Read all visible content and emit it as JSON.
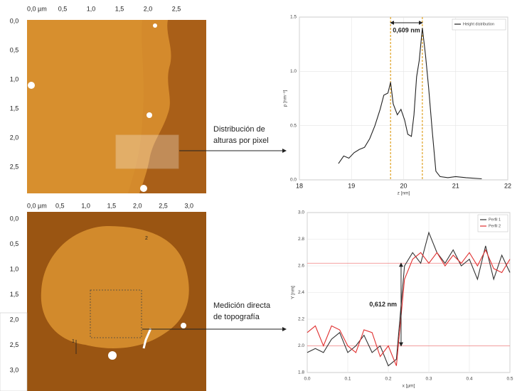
{
  "images": [
    {
      "x_labels": [
        "0,0 µm",
        "0,5",
        "1,0",
        "1,5",
        "2,0",
        "2,5"
      ],
      "y_labels": [
        "0,0",
        "0,5",
        "1,0",
        "1,5",
        "2,0",
        "2,5"
      ]
    },
    {
      "x_labels": [
        "0,0 µm",
        "0,5",
        "1,0",
        "1,5",
        "2,0",
        "2,5",
        "3,0"
      ],
      "y_labels": [
        "0,0",
        "0,5",
        "1,0",
        "1,5",
        "2,0",
        "2,5",
        "3,0"
      ],
      "markers": [
        "1",
        "2"
      ]
    }
  ],
  "captions": [
    [
      "Distribución de",
      "alturas por pixel"
    ],
    [
      "Medición directa",
      "de topografía"
    ]
  ],
  "chart_data": [
    {
      "type": "line",
      "xlabel": "z [nm]",
      "ylabel": "ρ [nm⁻¹]",
      "xlim": [
        18,
        22
      ],
      "xticks": [
        18,
        19,
        20,
        21,
        22
      ],
      "ylim": [
        0,
        1.5
      ],
      "yticks": [
        {
          "value": 0,
          "label": "0.0"
        },
        0.5,
        {
          "value": 1,
          "label": "1.0"
        },
        1.5
      ],
      "grid": true,
      "legend": "upper right",
      "x": [
        18.75,
        18.85,
        18.95,
        19.05,
        19.15,
        19.25,
        19.35,
        19.45,
        19.55,
        19.62,
        19.7,
        19.75,
        19.8,
        19.88,
        19.95,
        20.02,
        20.08,
        20.15,
        20.2,
        20.25,
        20.3,
        20.36,
        20.42,
        20.48,
        20.55,
        20.62,
        20.7,
        20.85,
        21.0,
        21.2,
        21.5
      ],
      "series": [
        {
          "name": "Height distribution",
          "color": "#222222",
          "values": [
            0.15,
            0.22,
            0.2,
            0.25,
            0.28,
            0.3,
            0.38,
            0.5,
            0.65,
            0.78,
            0.8,
            0.9,
            0.7,
            0.6,
            0.65,
            0.55,
            0.42,
            0.4,
            0.6,
            0.95,
            1.1,
            1.4,
            1.15,
            0.85,
            0.45,
            0.08,
            0.03,
            0.02,
            0.03,
            0.02,
            0.01
          ]
        }
      ],
      "vlines": [
        19.75,
        20.36
      ],
      "ref_color": "#e0a020",
      "annotation": "0,609 nm"
    },
    {
      "type": "line",
      "xlabel": "x [µm]",
      "ylabel": "Y [nm]",
      "xlim": [
        0,
        0.5
      ],
      "xticks": [
        {
          "value": 0,
          "label": "0.0"
        },
        0.1,
        0.2,
        0.3,
        0.4,
        0.5
      ],
      "ylim": [
        1.8,
        3.0
      ],
      "yticks": [
        1.8,
        {
          "value": 2,
          "label": "2.0"
        },
        2.2,
        2.4,
        2.6,
        2.8,
        {
          "value": 3,
          "label": "3.0"
        }
      ],
      "grid": true,
      "legend": "upper right",
      "x": [
        0,
        0.02,
        0.04,
        0.06,
        0.08,
        0.1,
        0.12,
        0.14,
        0.16,
        0.18,
        0.2,
        0.22,
        0.24,
        0.26,
        0.28,
        0.3,
        0.32,
        0.34,
        0.36,
        0.38,
        0.4,
        0.42,
        0.44,
        0.46,
        0.48,
        0.5
      ],
      "series": [
        {
          "name": "Perfil 1",
          "color": "#333333",
          "values": [
            1.95,
            1.98,
            1.95,
            2.05,
            2.1,
            1.95,
            2.0,
            2.08,
            1.95,
            2.0,
            1.85,
            1.9,
            2.6,
            2.7,
            2.62,
            2.85,
            2.7,
            2.62,
            2.72,
            2.6,
            2.65,
            2.5,
            2.75,
            2.5,
            2.68,
            2.55
          ]
        },
        {
          "name": "Perfil 2",
          "color": "#e03030",
          "values": [
            2.1,
            2.15,
            2.0,
            2.15,
            2.12,
            2.0,
            1.95,
            2.12,
            2.1,
            1.92,
            2.0,
            1.85,
            2.5,
            2.65,
            2.7,
            2.62,
            2.7,
            2.6,
            2.68,
            2.62,
            2.7,
            2.6,
            2.72,
            2.58,
            2.55,
            2.65
          ]
        }
      ],
      "hlines": [
        2.62,
        2.0
      ],
      "ref_color": "#f08080",
      "annotation": "0,612 nm"
    }
  ]
}
